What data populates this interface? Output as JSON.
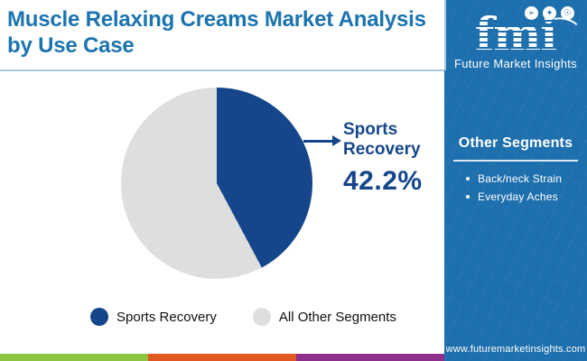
{
  "header": {
    "title": "Muscle Relaxing Creams Market Analysis by Use Case"
  },
  "logo": {
    "brand": "fmi",
    "tagline": "Future Market Insights",
    "icons": [
      "dove-icon",
      "compass-icon",
      "globe-icon"
    ],
    "icon_glyphs": {
      "dove": "➢",
      "compass": "✦",
      "globe": "☉"
    }
  },
  "sidebar": {
    "heading": "Other Segments",
    "items": [
      {
        "label": "Back/neck Strain"
      },
      {
        "label": "Everyday Aches"
      }
    ],
    "url": "www.futuremarketinsights.com",
    "background_color": "#1e6fad"
  },
  "chart_data": {
    "type": "pie",
    "title": "Muscle Relaxing Creams Market Analysis by Use Case",
    "slices": [
      {
        "label": "Sports Recovery",
        "value": 42.2,
        "color": "#15468b"
      },
      {
        "label": "All Other Segments",
        "value": 57.8,
        "color": "#dedede"
      }
    ],
    "start_angle_deg": 0,
    "direction": "clockwise",
    "legend_position": "bottom",
    "callout": {
      "label": "Sports Recovery",
      "value_label": "42.2%"
    }
  },
  "footer": {
    "stripe_colors": [
      "#8bc540",
      "#e2571f",
      "#8f2e8b"
    ]
  },
  "colors": {
    "title_blue": "#1b74ae",
    "accent_navy": "#15468b",
    "slice_gray": "#dedede",
    "underline_blue": "#aac8e0"
  }
}
